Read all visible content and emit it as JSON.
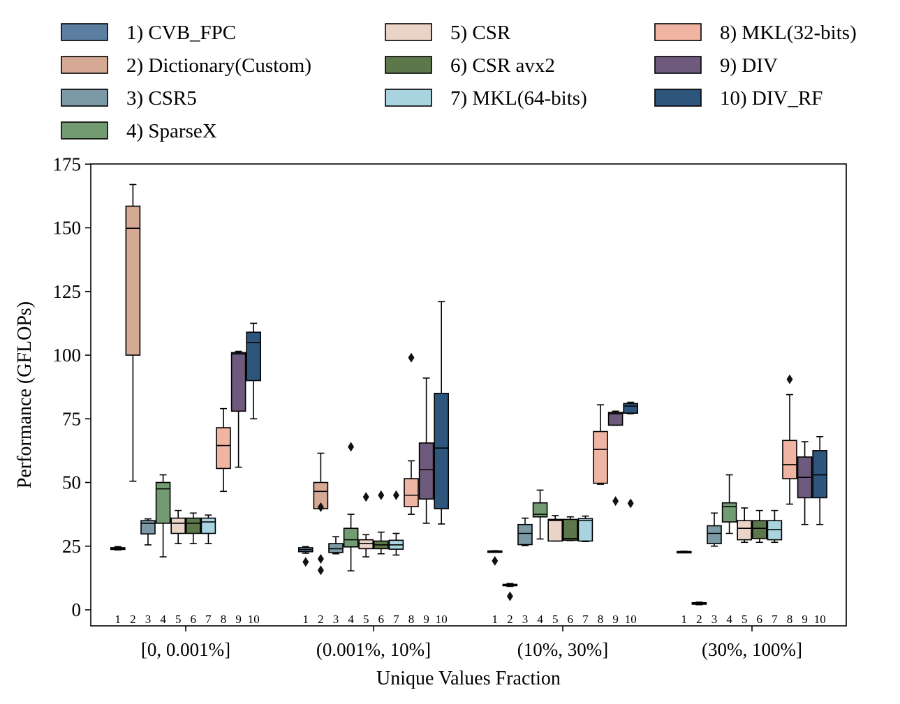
{
  "chart_data": {
    "type": "box",
    "xlabel": "Unique Values Fraction",
    "ylabel": "Performance (GFLOPs)",
    "ylim": [
      -3,
      175
    ],
    "yticks": [
      0,
      25,
      50,
      75,
      100,
      125,
      150,
      175
    ],
    "grid": false,
    "legend_position": "top (outside)",
    "categories": [
      "[0, 0.001%]",
      "(0.001%, 10%]",
      "(10%, 30%]",
      "(30%, 100%]"
    ],
    "box_numbers": [
      "1",
      "2",
      "3",
      "4",
      "5",
      "6",
      "7",
      "8",
      "9",
      "10"
    ],
    "series": [
      {
        "name": "1) CVB_FPC",
        "color": "#5b7ea1",
        "boxes": [
          {
            "whislo": 23.5,
            "q1": 23.7,
            "med": 24.0,
            "q3": 24.4,
            "whishi": 24.8,
            "fliers": []
          },
          {
            "whislo": 22.2,
            "q1": 22.8,
            "med": 23.6,
            "q3": 24.4,
            "whishi": 24.8,
            "fliers": [
              18.8
            ]
          },
          {
            "whislo": 22.6,
            "q1": 22.7,
            "med": 22.9,
            "q3": 23.1,
            "whishi": 23.2,
            "fliers": [
              19.2
            ]
          },
          {
            "whislo": 22.4,
            "q1": 22.6,
            "med": 22.8,
            "q3": 22.9,
            "whishi": 23.0,
            "fliers": []
          }
        ]
      },
      {
        "name": "2) Dictionary(Custom)",
        "color": "#d6a994",
        "boxes": [
          {
            "whislo": 50.5,
            "q1": 100.0,
            "med": 149.8,
            "q3": 158.5,
            "whishi": 167.0,
            "fliers": []
          },
          {
            "whislo": 39.7,
            "q1": 39.7,
            "med": 46.5,
            "q3": 50.0,
            "whishi": 61.5,
            "fliers": [
              15.5,
              20.0,
              40.3
            ]
          },
          {
            "whislo": 9.2,
            "q1": 9.5,
            "med": 9.8,
            "q3": 10.0,
            "whishi": 10.3,
            "fliers": [
              5.3
            ]
          },
          {
            "whislo": 2.0,
            "q1": 2.2,
            "med": 2.5,
            "q3": 2.8,
            "whishi": 3.0,
            "fliers": []
          }
        ]
      },
      {
        "name": "3) CSR5",
        "color": "#7b9aa6",
        "boxes": [
          {
            "whislo": 25.5,
            "q1": 29.8,
            "med": 34.0,
            "q3": 35.0,
            "whishi": 35.7,
            "fliers": []
          },
          {
            "whislo": 22.0,
            "q1": 22.5,
            "med": 24.0,
            "q3": 26.0,
            "whishi": 28.7,
            "fliers": []
          },
          {
            "whislo": 25.2,
            "q1": 25.6,
            "med": 30.0,
            "q3": 33.5,
            "whishi": 36.0,
            "fliers": []
          },
          {
            "whislo": 25.0,
            "q1": 26.0,
            "med": 30.0,
            "q3": 33.0,
            "whishi": 38.0,
            "fliers": []
          }
        ]
      },
      {
        "name": "4) SparseX",
        "color": "#739b72",
        "boxes": [
          {
            "whislo": 20.8,
            "q1": 34.0,
            "med": 47.5,
            "q3": 50.0,
            "whishi": 53.0,
            "fliers": []
          },
          {
            "whislo": 15.3,
            "q1": 24.7,
            "med": 27.5,
            "q3": 32.0,
            "whishi": 37.5,
            "fliers": [
              64.0
            ]
          },
          {
            "whislo": 27.8,
            "q1": 36.5,
            "med": 37.5,
            "q3": 42.0,
            "whishi": 47.0,
            "fliers": []
          },
          {
            "whislo": 30.0,
            "q1": 34.5,
            "med": 40.5,
            "q3": 42.0,
            "whishi": 53.0,
            "fliers": []
          }
        ]
      },
      {
        "name": "5) CSR",
        "color": "#ead4c8",
        "boxes": [
          {
            "whislo": 26.0,
            "q1": 30.0,
            "med": 34.0,
            "q3": 36.0,
            "whishi": 39.0,
            "fliers": []
          },
          {
            "whislo": 20.8,
            "q1": 24.0,
            "med": 26.0,
            "q3": 27.5,
            "whishi": 29.5,
            "fliers": [
              44.3
            ]
          },
          {
            "whislo": 27.0,
            "q1": 27.0,
            "med": 35.0,
            "q3": 35.5,
            "whishi": 37.0,
            "fliers": []
          },
          {
            "whislo": 26.5,
            "q1": 27.5,
            "med": 32.0,
            "q3": 35.0,
            "whishi": 40.0,
            "fliers": []
          }
        ]
      },
      {
        "name": "6) CSR avx2",
        "color": "#5c784b",
        "boxes": [
          {
            "whislo": 26.0,
            "q1": 30.0,
            "med": 34.0,
            "q3": 36.0,
            "whishi": 38.0,
            "fliers": []
          },
          {
            "whislo": 22.0,
            "q1": 24.0,
            "med": 25.5,
            "q3": 27.0,
            "whishi": 30.5,
            "fliers": [
              45.0
            ]
          },
          {
            "whislo": 27.2,
            "q1": 27.3,
            "med": 28.0,
            "q3": 35.5,
            "whishi": 36.5,
            "fliers": []
          },
          {
            "whislo": 26.5,
            "q1": 28.0,
            "med": 32.0,
            "q3": 35.0,
            "whishi": 39.0,
            "fliers": []
          }
        ]
      },
      {
        "name": "7) MKL(64-bits)",
        "color": "#a9d4df",
        "boxes": [
          {
            "whislo": 26.0,
            "q1": 30.0,
            "med": 34.5,
            "q3": 36.0,
            "whishi": 37.2,
            "fliers": []
          },
          {
            "whislo": 21.5,
            "q1": 23.8,
            "med": 25.5,
            "q3": 27.3,
            "whishi": 30.0,
            "fliers": [
              45.0
            ]
          },
          {
            "whislo": 26.8,
            "q1": 27.0,
            "med": 35.0,
            "q3": 35.8,
            "whishi": 36.8,
            "fliers": []
          },
          {
            "whislo": 26.5,
            "q1": 27.5,
            "med": 31.5,
            "q3": 35.0,
            "whishi": 39.0,
            "fliers": []
          }
        ]
      },
      {
        "name": "8) MKL(32-bits)",
        "color": "#f0b5a2",
        "boxes": [
          {
            "whislo": 46.5,
            "q1": 55.5,
            "med": 64.5,
            "q3": 71.5,
            "whishi": 79.0,
            "fliers": []
          },
          {
            "whislo": 37.5,
            "q1": 40.5,
            "med": 45.0,
            "q3": 51.5,
            "whishi": 58.5,
            "fliers": [
              99.0
            ]
          },
          {
            "whislo": 49.3,
            "q1": 49.7,
            "med": 63.0,
            "q3": 70.0,
            "whishi": 80.5,
            "fliers": []
          },
          {
            "whislo": 41.5,
            "q1": 51.5,
            "med": 57.0,
            "q3": 66.5,
            "whishi": 84.5,
            "fliers": [
              90.5
            ]
          }
        ]
      },
      {
        "name": "9) DIV",
        "color": "#6e5a7d",
        "boxes": [
          {
            "whislo": 56.0,
            "q1": 78.0,
            "med": 100.5,
            "q3": 101.0,
            "whishi": 101.5,
            "fliers": []
          },
          {
            "whislo": 34.0,
            "q1": 43.5,
            "med": 55.0,
            "q3": 65.5,
            "whishi": 91.0,
            "fliers": []
          },
          {
            "whislo": 72.5,
            "q1": 72.5,
            "med": 77.0,
            "q3": 77.5,
            "whishi": 78.0,
            "fliers": [
              42.7
            ]
          },
          {
            "whislo": 33.5,
            "q1": 44.0,
            "med": 52.0,
            "q3": 60.0,
            "whishi": 66.0,
            "fliers": []
          }
        ]
      },
      {
        "name": "10) DIV_RF",
        "color": "#2e557b",
        "boxes": [
          {
            "whislo": 75.0,
            "q1": 90.0,
            "med": 105.0,
            "q3": 109.0,
            "whishi": 112.5,
            "fliers": []
          },
          {
            "whislo": 33.7,
            "q1": 39.7,
            "med": 63.5,
            "q3": 85.0,
            "whishi": 121.0,
            "fliers": []
          },
          {
            "whislo": 77.0,
            "q1": 77.2,
            "med": 80.0,
            "q3": 81.0,
            "whishi": 81.5,
            "fliers": [
              41.8
            ]
          },
          {
            "whislo": 33.5,
            "q1": 44.0,
            "med": 53.0,
            "q3": 62.5,
            "whishi": 68.0,
            "fliers": []
          }
        ]
      }
    ]
  }
}
